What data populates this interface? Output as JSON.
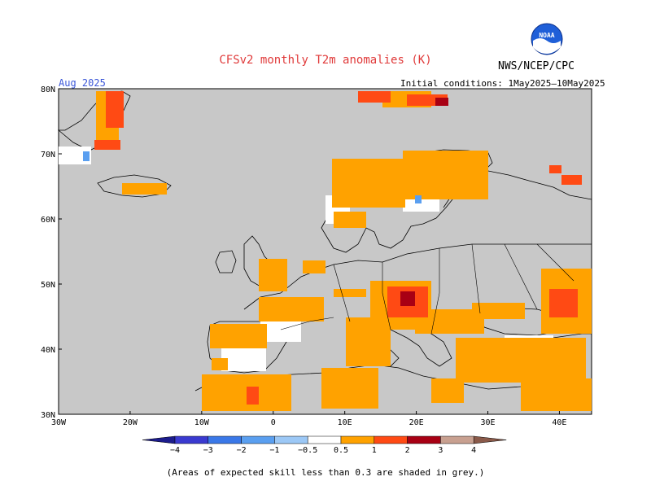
{
  "header": {
    "title": "CFSv2 monthly T2m anomalies (K)",
    "agency": "NWS/NCEP/CPC",
    "logo_text": "NOAA",
    "month": "Aug 2025",
    "initial_conditions": "Initial conditions: 1May2025–10May2025"
  },
  "map": {
    "lon_labels": [
      "30W",
      "20W",
      "10W",
      "0",
      "10E",
      "20E",
      "30E",
      "40E"
    ],
    "lat_labels": [
      "30N",
      "40N",
      "50N",
      "60N",
      "70N",
      "80N"
    ],
    "land_color": "#c8c8c8",
    "border_color": "#000000"
  },
  "legend": {
    "labels": [
      "−4",
      "−3",
      "−2",
      "−1",
      "−0.5",
      "0.5",
      "1",
      "2",
      "3",
      "4"
    ],
    "colors": [
      "#1c1c8c",
      "#3a3ad0",
      "#3a78e8",
      "#5a9ff0",
      "#9cc8f6",
      "#ffffff",
      "#ffa200",
      "#ff4a14",
      "#a80014",
      "#c8a090",
      "#8a5a4a"
    ]
  },
  "footnote": "(Areas of expected skill less than 0.3 are shaded in grey.)"
}
